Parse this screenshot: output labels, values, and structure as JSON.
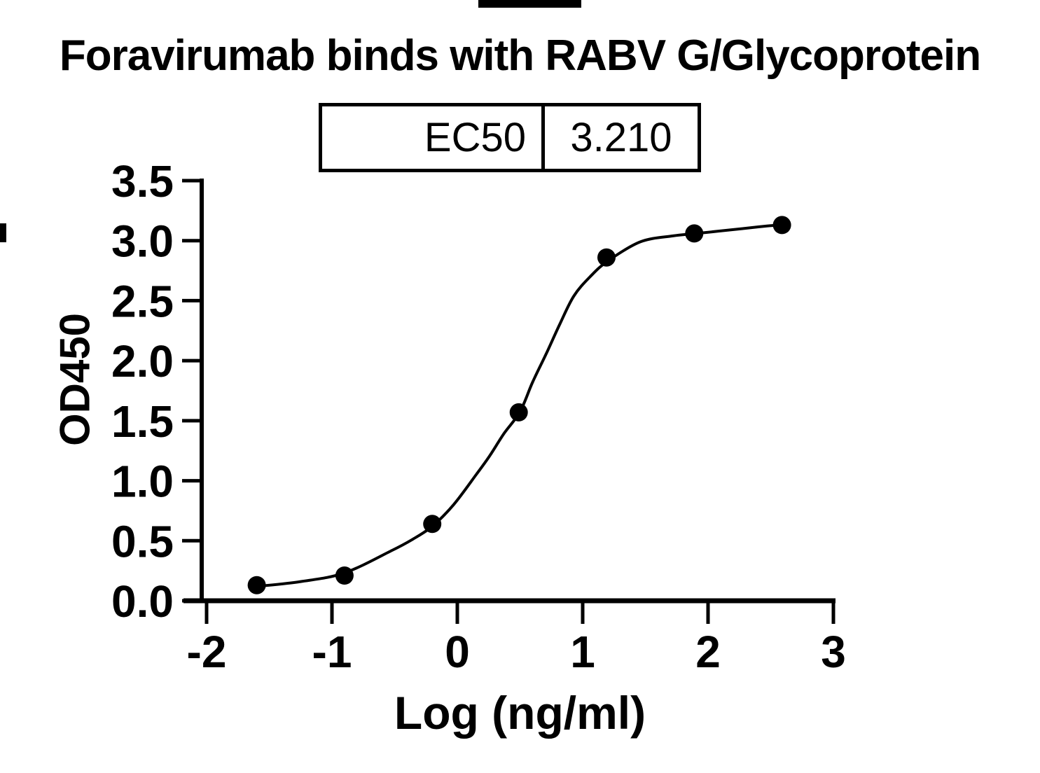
{
  "page": {
    "background": "#ffffff",
    "ink_color": "#000000"
  },
  "chart_data": {
    "type": "scatter",
    "title": "Foravirumab binds with RABV G/Glycoprotein",
    "xlabel": "Log (ng/ml)",
    "ylabel": "OD450",
    "xlim": [
      -2,
      3
    ],
    "ylim": [
      0,
      3.5
    ],
    "x_ticks": [
      -2,
      -1,
      0,
      1,
      2,
      3
    ],
    "x_tick_labels": [
      "-2",
      "-1",
      "0",
      "1",
      "2",
      "3"
    ],
    "y_ticks": [
      0,
      0.5,
      1,
      1.5,
      2,
      2.5,
      3,
      3.5
    ],
    "y_tick_labels": [
      "0.0",
      "0.5",
      "1.0",
      "1.5",
      "2.0",
      "2.5",
      "3.0",
      "3.5"
    ],
    "grid": false,
    "legend": "none",
    "marker_color": "#000000",
    "curve_color": "#000000",
    "series": [
      {
        "marker": "filled-circle",
        "x": [
          -1.6,
          -0.9,
          -0.2,
          0.49,
          1.19,
          1.89,
          2.59
        ],
        "y": [
          0.13,
          0.21,
          0.64,
          1.57,
          2.86,
          3.06,
          3.13
        ]
      }
    ],
    "fit_curve": {
      "description": "sigmoidal dose-response best-fit line",
      "points": [
        [
          -1.62,
          0.117
        ],
        [
          -1.25,
          0.16
        ],
        [
          -0.9,
          0.232
        ],
        [
          -0.52,
          0.42
        ],
        [
          -0.36,
          0.51
        ],
        [
          -0.2,
          0.62
        ],
        [
          -0.03,
          0.8
        ],
        [
          0.15,
          1.05
        ],
        [
          0.26,
          1.21
        ],
        [
          0.37,
          1.39
        ],
        [
          0.5,
          1.575
        ],
        [
          0.6,
          1.82
        ],
        [
          0.71,
          2.06
        ],
        [
          0.82,
          2.31
        ],
        [
          0.93,
          2.54
        ],
        [
          1.06,
          2.7
        ],
        [
          1.2,
          2.83
        ],
        [
          1.46,
          2.99
        ],
        [
          1.72,
          3.04
        ],
        [
          1.91,
          3.06
        ],
        [
          2.27,
          3.1
        ],
        [
          2.45,
          3.12
        ],
        [
          2.6,
          3.133
        ]
      ]
    },
    "ec50_table": {
      "label": "EC50",
      "value": "3.210"
    }
  }
}
